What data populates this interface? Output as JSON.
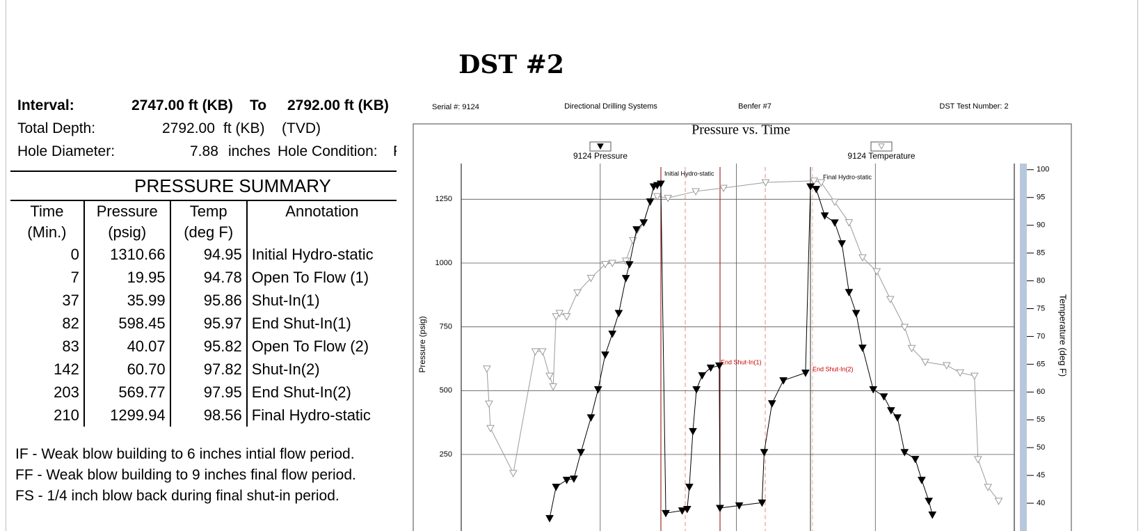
{
  "header": {
    "title": "DST #2"
  },
  "well_info": {
    "interval": {
      "label": "Interval:",
      "from": "2747.00 ft (KB)",
      "to_word": "To",
      "to": "2792.00 ft (KB)"
    },
    "total_depth": {
      "label": "Total Depth:",
      "value": "2792.00",
      "unit": "ft (KB)",
      "note": "(TVD)"
    },
    "hole": {
      "label": "Hole Diameter:",
      "value": "7.88",
      "unit": "inches",
      "condition_label": "Hole Condition:",
      "condition": "F"
    }
  },
  "table": {
    "title": "PRESSURE SUMMARY",
    "columns": [
      {
        "name": "Time",
        "unit": "(Min.)"
      },
      {
        "name": "Pressure",
        "unit": "(psig)"
      },
      {
        "name": "Temp",
        "unit": "(deg F)"
      },
      {
        "name": "Annotation"
      }
    ],
    "rows": [
      [
        "0",
        "1310.66",
        "94.95",
        "Initial Hydro-static"
      ],
      [
        "7",
        "19.95",
        "94.78",
        "Open To Flow (1)"
      ],
      [
        "37",
        "35.99",
        "95.86",
        "Shut-In(1)"
      ],
      [
        "82",
        "598.45",
        "95.97",
        "End Shut-In(1)"
      ],
      [
        "83",
        "40.07",
        "95.82",
        "Open To Flow (2)"
      ],
      [
        "142",
        "60.70",
        "97.82",
        "Shut-In(2)"
      ],
      [
        "203",
        "569.77",
        "97.95",
        "End Shut-In(2)"
      ],
      [
        "210",
        "1299.94",
        "98.56",
        "Final Hydro-static"
      ]
    ]
  },
  "notes": [
    "IF - Weak blow  building to 6 inches intial flow  period.",
    "FF - Weak blow  building to 9 inches final flow  period.",
    "FS - 1/4 inch blow  back during final shut-in period."
  ],
  "chart_data": {
    "type": "line",
    "serial": "Serial #:  9124",
    "company": "Directional Drilling Systems",
    "well": "Benfer #7",
    "test_number": "DST Test Number: 2",
    "title": "Pressure vs. Time",
    "ylabel": "Pressure (psig)",
    "y2label": "Temperature (deg F)",
    "xlim": [
      -280,
      493
    ],
    "xticks": [
      -85,
      106,
      301
    ],
    "ylim": [
      -50,
      1390
    ],
    "yticks": [
      250,
      500,
      750,
      1000,
      1250
    ],
    "y2lim": [
      35,
      101.1
    ],
    "y2ticks": [
      40,
      45,
      50,
      55,
      60,
      65,
      70,
      75,
      80,
      85,
      90,
      95,
      100
    ],
    "grid": true,
    "annotations": [
      {
        "text": "Initial Hydro-static",
        "color": "#000000"
      },
      {
        "text": "End Shut-In(1)",
        "color": "#cc0000"
      },
      {
        "text": "End Shut-In(2)",
        "color": "#cc0000"
      },
      {
        "text": "Final Hydro-static",
        "color": "#000000"
      }
    ],
    "series": [
      {
        "name": "9124 Pressure",
        "color": "#000000",
        "marker": "filled",
        "x": [
          -156,
          -147,
          -132,
          -122,
          -112,
          -98,
          -88,
          -78,
          -68,
          -59,
          -49,
          -44,
          -34,
          -24,
          -15,
          -10,
          -5,
          0,
          7,
          30,
          37,
          40,
          45,
          50,
          58,
          70,
          82,
          83,
          110,
          142,
          145,
          156,
          172,
          203,
          210,
          218,
          230,
          244,
          254,
          264,
          274,
          283,
          298,
          313,
          323,
          332,
          342,
          357,
          366,
          376,
          381
        ],
        "values": [
          0,
          123,
          150,
          155,
          259,
          395,
          505,
          641,
          723,
          804,
          941,
          995,
          1132,
          1159,
          1241,
          1300,
          1305,
          1311,
          20,
          30,
          36,
          123,
          341,
          505,
          560,
          590,
          598,
          40,
          50,
          61,
          259,
          450,
          540,
          570,
          1300,
          1290,
          1186,
          1159,
          1077,
          886,
          804,
          668,
          505,
          477,
          423,
          395,
          259,
          232,
          150,
          68,
          14
        ]
      },
      {
        "name": "9124 Temperature",
        "color": "#9a9a9a",
        "marker": "hollow",
        "axis": "y2",
        "x": [
          -244,
          -241,
          -239,
          -207,
          -176,
          -166,
          -156,
          -151,
          -147,
          -142,
          -132,
          -117,
          -98,
          -78,
          -68,
          -49,
          -39,
          -24,
          -15,
          -5,
          10,
          49,
          88,
          147,
          215,
          225,
          244,
          264,
          283,
          303,
          322,
          342,
          352,
          371,
          401,
          420,
          440,
          445,
          459,
          474
        ],
        "values": [
          64.2,
          57.9,
          53.5,
          45.4,
          67.3,
          67.3,
          62.9,
          61.0,
          73.6,
          74.2,
          73.6,
          77.9,
          80.5,
          83.0,
          83.2,
          83.6,
          87.3,
          90.5,
          94.2,
          95.2,
          94.9,
          96.1,
          96.7,
          97.7,
          98.0,
          97.7,
          94.2,
          90.5,
          84.2,
          81.7,
          76.7,
          71.7,
          67.9,
          65.4,
          64.8,
          63.5,
          62.9,
          47.9,
          42.9,
          40.4
        ]
      }
    ]
  }
}
